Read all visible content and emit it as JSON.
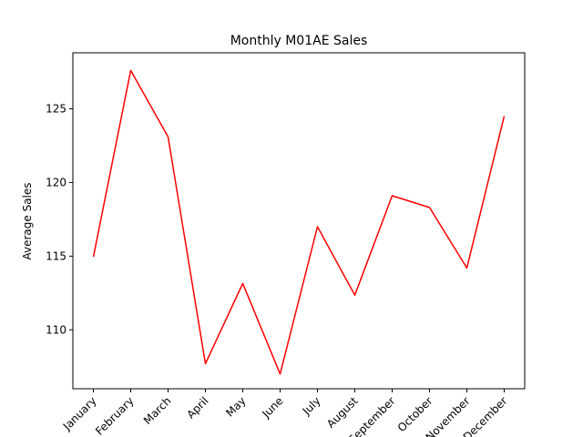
{
  "chart_data": {
    "type": "line",
    "title": "Monthly M01AE Sales",
    "xlabel": "",
    "ylabel": "Average Sales",
    "categories": [
      "January",
      "February",
      "March",
      "April",
      "May",
      "June",
      "July",
      "August",
      "September",
      "October",
      "November",
      "December"
    ],
    "series": [
      {
        "values": [
          114.95,
          127.6,
          123.1,
          107.7,
          113.15,
          107.0,
          117.0,
          112.35,
          119.1,
          118.3,
          114.2,
          124.5
        ],
        "color": "#ff0000"
      }
    ],
    "ylim": [
      106.0,
      128.8
    ],
    "yticks": [
      110,
      115,
      120,
      125
    ],
    "grid": false,
    "legend": "none"
  }
}
